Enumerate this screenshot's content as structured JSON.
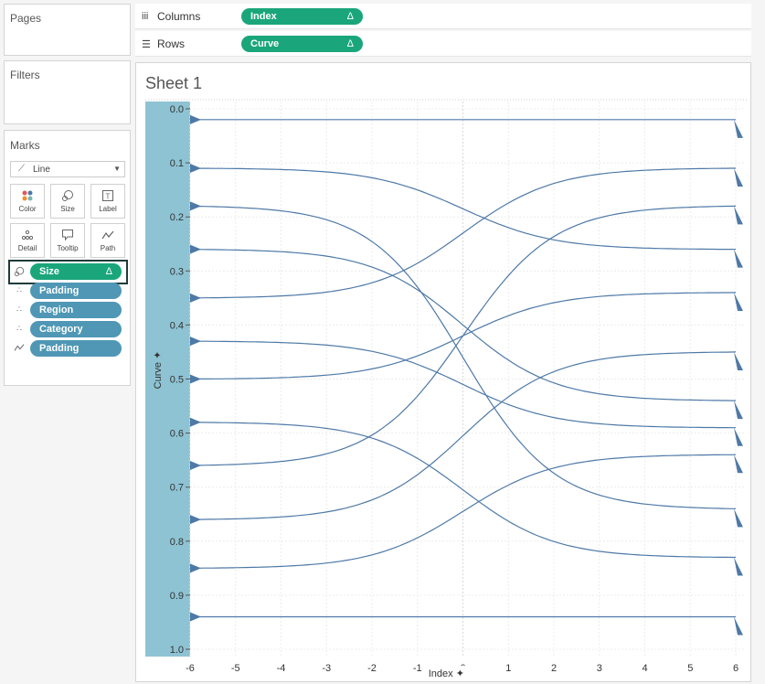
{
  "panels": {
    "pages": "Pages",
    "filters": "Filters",
    "marks": "Marks"
  },
  "shelves": {
    "columns": {
      "label": "Columns",
      "pill": "Index",
      "delta": "Δ"
    },
    "rows": {
      "label": "Rows",
      "pill": "Curve",
      "delta": "Δ"
    }
  },
  "marks": {
    "mark_type": "Line",
    "buttons": [
      {
        "label": "Color",
        "icon": "color-icon"
      },
      {
        "label": "Size",
        "icon": "size-icon"
      },
      {
        "label": "Label",
        "icon": "label-icon"
      },
      {
        "label": "Detail",
        "icon": "detail-icon"
      },
      {
        "label": "Tooltip",
        "icon": "tooltip-icon"
      },
      {
        "label": "Path",
        "icon": "path-icon"
      }
    ],
    "fields": [
      {
        "name": "Size",
        "delta": "Δ",
        "icon": "size-icon",
        "color": "#1aa67a"
      },
      {
        "name": "Padding",
        "icon": "detail-icon",
        "color": "#4f97b5"
      },
      {
        "name": "Region",
        "icon": "detail-icon",
        "color": "#4f97b5"
      },
      {
        "name": "Category",
        "icon": "detail-icon",
        "color": "#4f97b5"
      },
      {
        "name": "Padding",
        "icon": "path-icon",
        "color": "#4f97b5"
      }
    ]
  },
  "sheet": {
    "title": "Sheet 1"
  },
  "chart_data": {
    "type": "line",
    "xlabel": "Index",
    "ylabel": "Curve",
    "xlim": [
      -6,
      6
    ],
    "ylim": [
      0.0,
      1.0
    ],
    "y_reversed": true,
    "xticks": [
      "-6",
      "-5",
      "-4",
      "-3",
      "-2",
      "-1",
      "0",
      "1",
      "2",
      "3",
      "4",
      "5",
      "6"
    ],
    "yticks": [
      "0.0",
      "0.1",
      "0.2",
      "0.3",
      "0.4",
      "0.5",
      "0.6",
      "0.7",
      "0.8",
      "0.9",
      "1.0"
    ],
    "line_color": "#4e79a7",
    "band_color": "#8ec3d3",
    "series": [
      {
        "start": 0.02,
        "end": 0.02
      },
      {
        "start": 0.11,
        "end": 0.26
      },
      {
        "start": 0.18,
        "end": 0.74
      },
      {
        "start": 0.26,
        "end": 0.54
      },
      {
        "start": 0.35,
        "end": 0.11
      },
      {
        "start": 0.43,
        "end": 0.59
      },
      {
        "start": 0.5,
        "end": 0.34
      },
      {
        "start": 0.58,
        "end": 0.83
      },
      {
        "start": 0.66,
        "end": 0.18
      },
      {
        "start": 0.76,
        "end": 0.45
      },
      {
        "start": 0.85,
        "end": 0.64
      },
      {
        "start": 0.94,
        "end": 0.94
      }
    ]
  }
}
